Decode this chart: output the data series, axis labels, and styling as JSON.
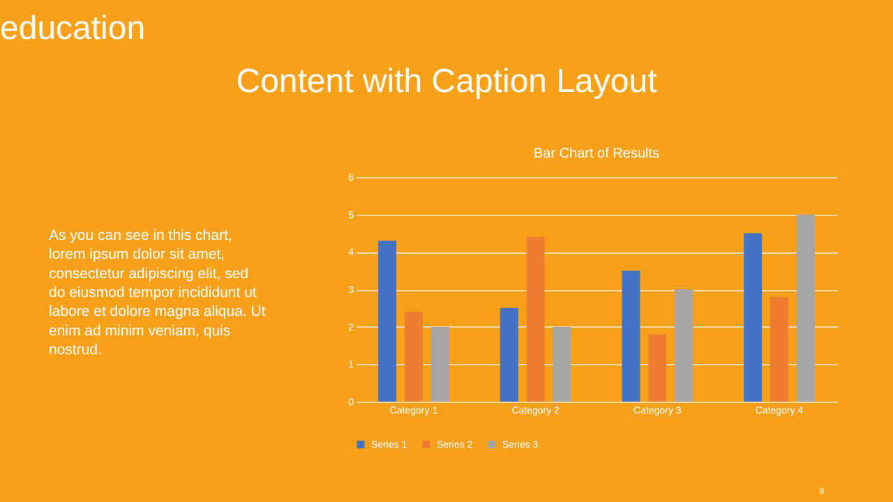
{
  "chart_data": {
    "type": "bar",
    "title": "Bar Chart of Results",
    "categories": [
      "Category 1",
      "Category 2",
      "Category 3",
      "Category 4"
    ],
    "series": [
      {
        "name": "Series 1",
        "color": "#4472c4",
        "values": [
          4.3,
          2.5,
          3.5,
          4.5
        ]
      },
      {
        "name": "Series 2",
        "color": "#ed7d31",
        "values": [
          2.4,
          4.4,
          1.8,
          2.8
        ]
      },
      {
        "name": "Series 3",
        "color": "#a5a5a5",
        "values": [
          2,
          2,
          3,
          5
        ]
      }
    ],
    "ylim": [
      0,
      6
    ],
    "yticks": [
      0,
      1,
      2,
      3,
      4,
      5,
      6
    ],
    "grid": "y",
    "legend": "bottom",
    "annotations": [
      "education",
      "Content with Caption Layout",
      "As you can see in this chart, lorem ipsum dolor sit amet, consectetur adipiscing elit, sed do eiusmod tempor incididunt ut labore et dolore magna aliqua. Ut enim ad minim veniam, quis nostrud.",
      "8"
    ]
  }
}
